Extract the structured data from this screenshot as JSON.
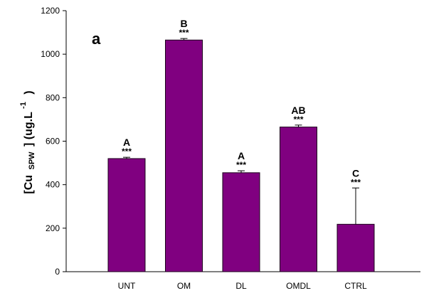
{
  "chart_data": {
    "type": "bar",
    "panel_label": "a",
    "categories": [
      "UNT",
      "OM",
      "DL",
      "OMDL",
      "CTRL"
    ],
    "values": [
      520,
      1065,
      455,
      665,
      218
    ],
    "error_upper": [
      526,
      1072,
      464,
      674,
      385
    ],
    "significance": [
      "***",
      "***",
      "***",
      "***",
      "***"
    ],
    "group_letters": [
      "A",
      "B",
      "A",
      "AB",
      "C"
    ],
    "ylabel": {
      "main": "[Cu",
      "subscript": "SPW",
      "rest": "] (ug.L",
      "superscript": "-1",
      "close": ")"
    },
    "ylim": [
      0,
      1200
    ],
    "yticks": [
      0,
      200,
      400,
      600,
      800,
      1000,
      1200
    ],
    "grid": false,
    "bar_color": "#800080",
    "bar_edge_color": "#1a001a"
  }
}
